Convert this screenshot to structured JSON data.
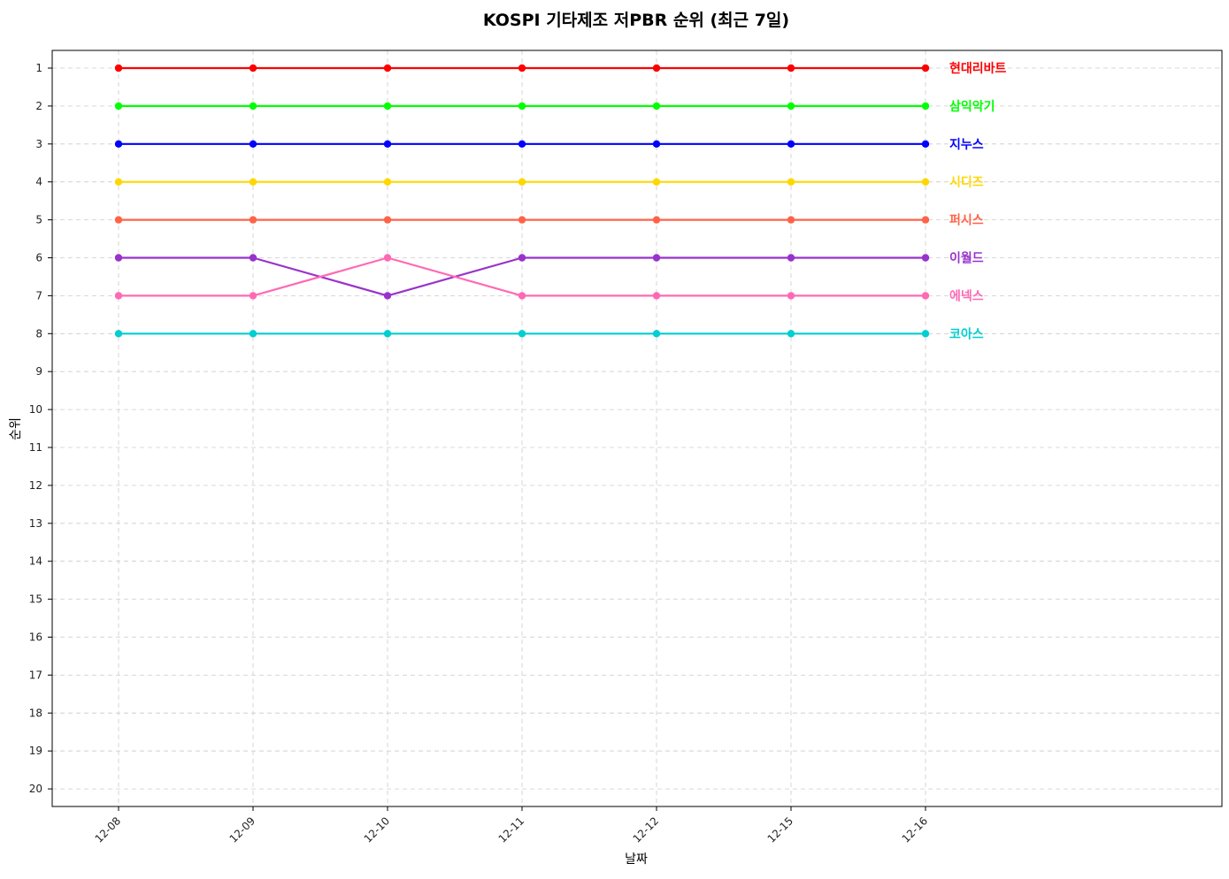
{
  "chart_data": {
    "type": "line",
    "title": "KOSPI 기타제조 저PBR 순위 (최근 7일)",
    "xlabel": "날짜",
    "ylabel": "순위",
    "categories": [
      "12-08",
      "12-09",
      "12-10",
      "12-11",
      "12-12",
      "12-15",
      "12-16"
    ],
    "ylim": [
      1,
      20
    ],
    "y_inverted": true,
    "y_ticks": [
      1,
      2,
      3,
      4,
      5,
      6,
      7,
      8,
      9,
      10,
      11,
      12,
      13,
      14,
      15,
      16,
      17,
      18,
      19,
      20
    ],
    "grid": true,
    "legend_placement": "inline-right",
    "series": [
      {
        "name": "현대리바트",
        "color": "#ff0000",
        "values": [
          1,
          1,
          1,
          1,
          1,
          1,
          1
        ]
      },
      {
        "name": "삼익악기",
        "color": "#00ff00",
        "values": [
          2,
          2,
          2,
          2,
          2,
          2,
          2
        ]
      },
      {
        "name": "지누스",
        "color": "#0000ff",
        "values": [
          3,
          3,
          3,
          3,
          3,
          3,
          3
        ]
      },
      {
        "name": "시디즈",
        "color": "#ffd700",
        "values": [
          4,
          4,
          4,
          4,
          4,
          4,
          4
        ]
      },
      {
        "name": "퍼시스",
        "color": "#ff6347",
        "values": [
          5,
          5,
          5,
          5,
          5,
          5,
          5
        ]
      },
      {
        "name": "이월드",
        "color": "#9932cc",
        "values": [
          6,
          6,
          7,
          6,
          6,
          6,
          6
        ]
      },
      {
        "name": "에넥스",
        "color": "#ff69b4",
        "values": [
          7,
          7,
          6,
          7,
          7,
          7,
          7
        ]
      },
      {
        "name": "코아스",
        "color": "#00ced1",
        "values": [
          8,
          8,
          8,
          8,
          8,
          8,
          8
        ]
      }
    ]
  }
}
